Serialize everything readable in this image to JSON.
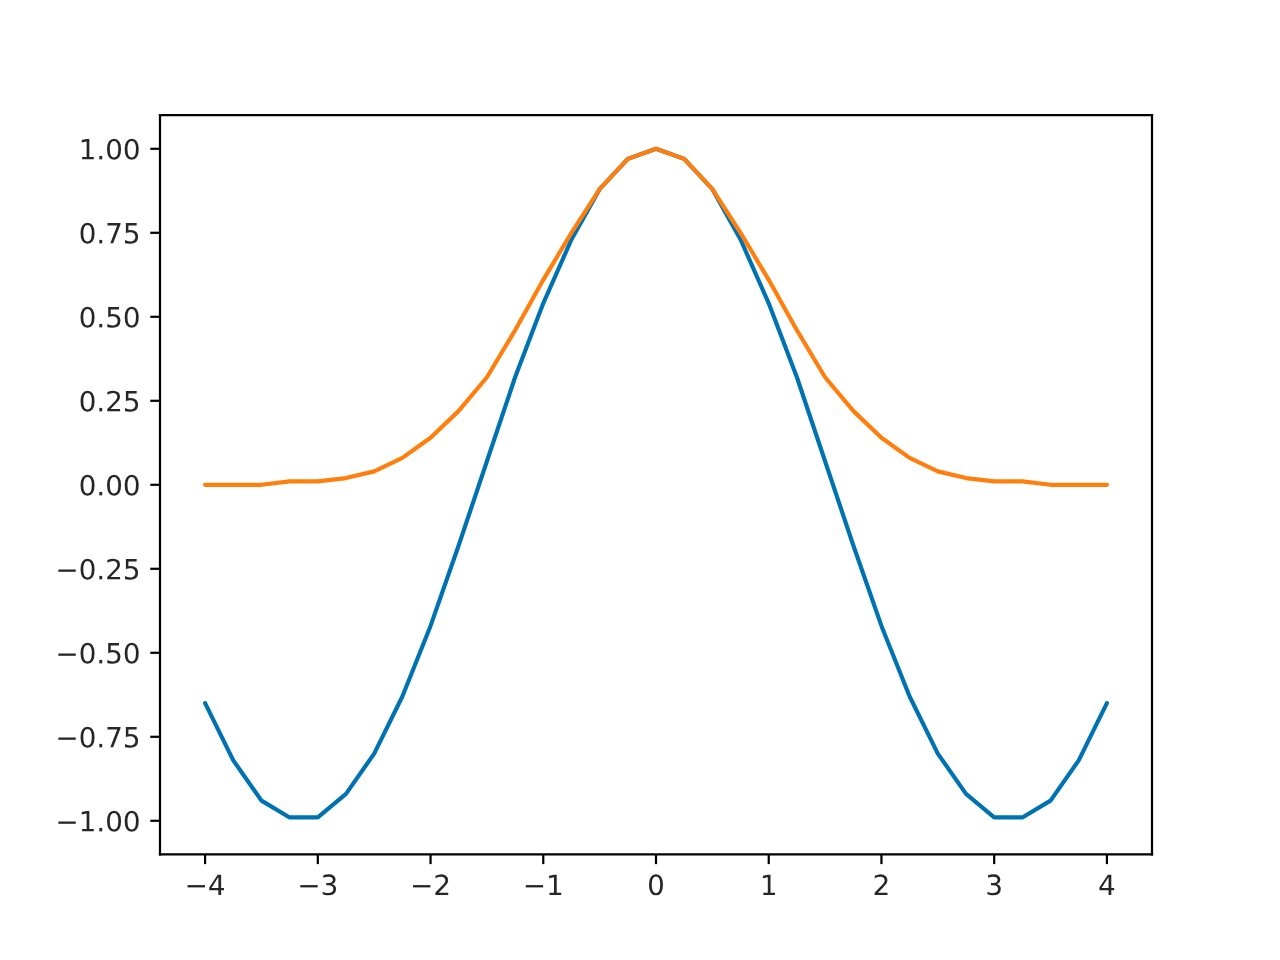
{
  "chart_data": {
    "type": "line",
    "x": [
      -4,
      -3.75,
      -3.5,
      -3.25,
      -3,
      -2.75,
      -2.5,
      -2.25,
      -2,
      -1.75,
      -1.5,
      -1.25,
      -1,
      -0.75,
      -0.5,
      -0.25,
      0,
      0.25,
      0.5,
      0.75,
      1,
      1.25,
      1.5,
      1.75,
      2,
      2.25,
      2.5,
      2.75,
      3,
      3.25,
      3.5,
      3.75,
      4
    ],
    "series": [
      {
        "color": "#0072b2",
        "values": [
          -0.65,
          -0.82,
          -0.94,
          -0.99,
          -0.99,
          -0.92,
          -0.8,
          -0.63,
          -0.42,
          -0.18,
          0.07,
          0.32,
          0.54,
          0.73,
          0.88,
          0.97,
          1.0,
          0.97,
          0.88,
          0.73,
          0.54,
          0.32,
          0.07,
          -0.18,
          -0.42,
          -0.63,
          -0.8,
          -0.92,
          -0.99,
          -0.99,
          -0.94,
          -0.82,
          -0.65
        ]
      },
      {
        "color": "#ff7f0e",
        "values": [
          0.0,
          0.0,
          0.0,
          0.01,
          0.01,
          0.02,
          0.04,
          0.08,
          0.14,
          0.22,
          0.32,
          0.46,
          0.61,
          0.75,
          0.88,
          0.97,
          1.0,
          0.97,
          0.88,
          0.75,
          0.61,
          0.46,
          0.32,
          0.22,
          0.14,
          0.08,
          0.04,
          0.02,
          0.01,
          0.01,
          0.0,
          0.0,
          0.0
        ]
      }
    ],
    "xlim": [
      -4.4,
      4.4
    ],
    "ylim": [
      -1.1,
      1.1
    ],
    "xticks": [
      {
        "value": -4,
        "label": "−4"
      },
      {
        "value": -3,
        "label": "−3"
      },
      {
        "value": -2,
        "label": "−2"
      },
      {
        "value": -1,
        "label": "−1"
      },
      0,
      1,
      2,
      3,
      4
    ],
    "yticks": [
      {
        "value": -1,
        "label": "−1.00"
      },
      {
        "value": -0.75,
        "label": "−0.75"
      },
      {
        "value": -0.5,
        "label": "−0.50"
      },
      {
        "value": -0.25,
        "label": "−0.25"
      },
      {
        "value": 0,
        "label": "0.00"
      },
      {
        "value": 0.25,
        "label": "0.25"
      },
      {
        "value": 0.5,
        "label": "0.50"
      },
      {
        "value": 0.75,
        "label": "0.75"
      },
      {
        "value": 1,
        "label": "1.00"
      }
    ],
    "grid": false,
    "legend": false
  }
}
